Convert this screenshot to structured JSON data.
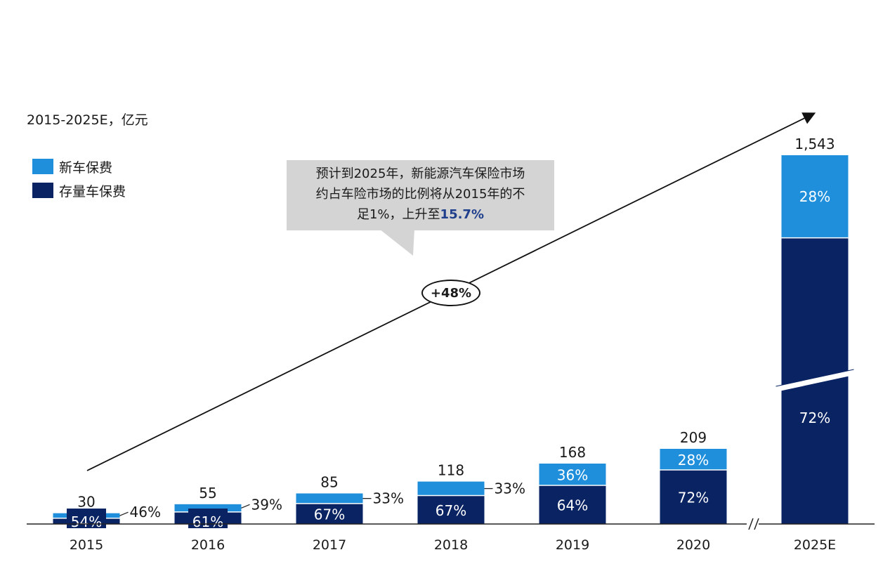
{
  "subtitle": "2015-2025E，亿元",
  "legend": [
    {
      "label": "新车保费",
      "color": "#1f8fdc"
    },
    {
      "label": "存量车保费",
      "color": "#0a2463"
    }
  ],
  "callout": {
    "line1": "预计到2025年，新能源汽车保险市场",
    "line2": "约占车险市场的比例将从2015年的不",
    "line3_prefix": "足1%，上升至",
    "highlight": "15.7%"
  },
  "growth_label": "+48%",
  "colors": {
    "new": "#1f8fdc",
    "stock": "#0a2463",
    "axis": "#222222",
    "callout_bg": "#d4d4d4"
  },
  "chart_data": {
    "type": "bar",
    "stacked": true,
    "categories": [
      "2015",
      "2016",
      "2017",
      "2018",
      "2019",
      "2020",
      "2025E"
    ],
    "totals": [
      30,
      55,
      85,
      118,
      168,
      209,
      1543
    ],
    "total_labels": [
      "30",
      "55",
      "85",
      "118",
      "168",
      "209",
      "1,543"
    ],
    "axis_break_before": "2025E",
    "series": [
      {
        "name": "存量车保费",
        "values_pct": [
          54,
          61,
          67,
          67,
          64,
          72,
          72
        ],
        "labels": [
          "54%",
          "61%",
          "67%",
          "67%",
          "64%",
          "72%",
          "72%"
        ]
      },
      {
        "name": "新车保费",
        "values_pct": [
          46,
          39,
          33,
          33,
          36,
          28,
          28
        ],
        "labels": [
          "46%",
          "39%",
          "33%",
          "33%",
          "36%",
          "28%",
          "28%"
        ]
      }
    ],
    "title": "",
    "xlabel": "",
    "ylabel": ""
  }
}
